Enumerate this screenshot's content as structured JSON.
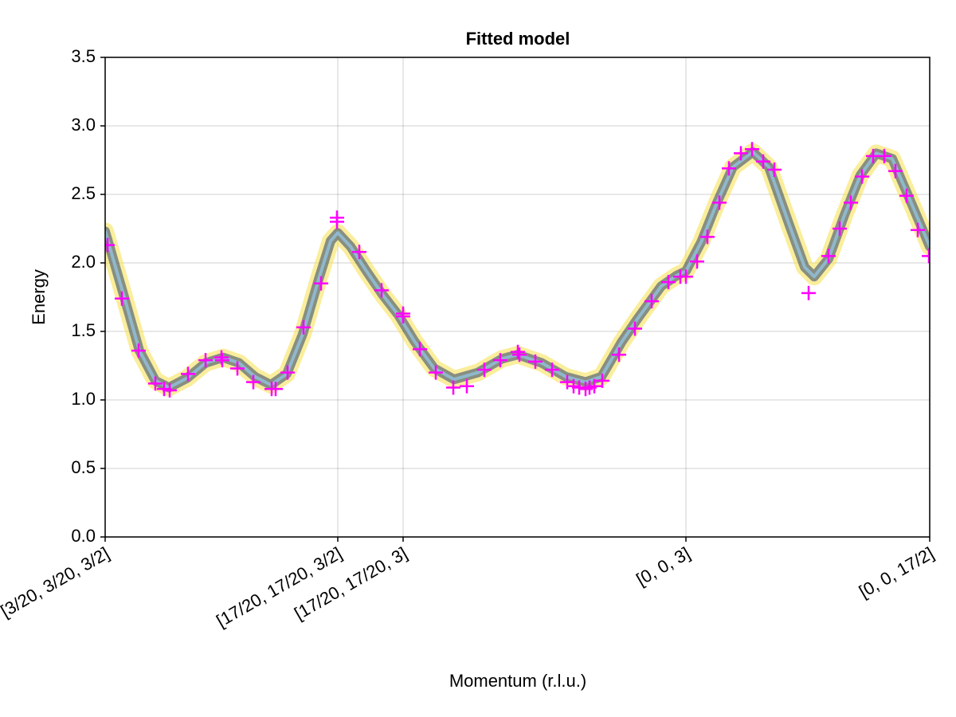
{
  "chart_data": {
    "type": "line",
    "title": "Fitted model",
    "x_label": "Momentum (r.l.u.)",
    "y_label": "Energy",
    "xlim": [
      0,
      1035
    ],
    "xticks": [
      {
        "value": 0,
        "label": "[3/20, 3/20, 3/2]"
      },
      {
        "value": 292,
        "label": "[17/20, 17/20, 3/2]"
      },
      {
        "value": 374,
        "label": "[17/20, 17/20, 3]"
      },
      {
        "value": 729,
        "label": "[0, 0, 3]"
      },
      {
        "value": 1035,
        "label": "[0, 0, 17/2]"
      }
    ],
    "ylim": [
      0,
      3.5
    ],
    "yticks": [
      {
        "value": 0,
        "label": "0.0"
      },
      0.5,
      {
        "value": 1,
        "label": "1.0"
      },
      1.5,
      {
        "value": 2,
        "label": "2.0"
      },
      2.5,
      {
        "value": 3,
        "label": "3.0"
      },
      3.5
    ],
    "grid": true,
    "series": [
      {
        "type": "line",
        "color": "#8fb8cc",
        "band_color": "#f5e04a",
        "x": [
          0,
          23,
          43,
          63,
          80,
          103,
          126,
          148,
          168,
          188,
          208,
          228,
          248,
          268,
          283,
          292,
          308,
          328,
          348,
          368,
          388,
          413,
          438,
          468,
          498,
          518,
          548,
          578,
          603,
          623,
          648,
          668,
          698,
          718,
          729,
          748,
          768,
          788,
          813,
          833,
          858,
          878,
          890,
          908,
          928,
          948,
          968,
          988,
          1008,
          1035
        ],
        "values": [
          2.23,
          1.77,
          1.36,
          1.14,
          1.09,
          1.16,
          1.27,
          1.31,
          1.27,
          1.17,
          1.11,
          1.19,
          1.48,
          1.88,
          2.16,
          2.22,
          2.12,
          1.94,
          1.77,
          1.62,
          1.43,
          1.23,
          1.15,
          1.2,
          1.3,
          1.33,
          1.27,
          1.17,
          1.13,
          1.17,
          1.42,
          1.59,
          1.83,
          1.91,
          1.94,
          2.15,
          2.44,
          2.7,
          2.81,
          2.7,
          2.29,
          1.97,
          1.9,
          2.03,
          2.35,
          2.64,
          2.8,
          2.76,
          2.49,
          2.12
        ]
      },
      {
        "type": "scatter",
        "color": "#ff00ff",
        "x": [
          3,
          21,
          42,
          63,
          74,
          81,
          104,
          126,
          146,
          147,
          166,
          186,
          209,
          214,
          229,
          249,
          271,
          291,
          291,
          319,
          347,
          374,
          374,
          395,
          415,
          437,
          454,
          476,
          496,
          518,
          520,
          540,
          561,
          580,
          588,
          595,
          603,
          608,
          614,
          624,
          645,
          665,
          686,
          707,
          722,
          729,
          743,
          756,
          771,
          783,
          798,
          812,
          826,
          840,
          883,
          908,
          922,
          936,
          950,
          964,
          978,
          992,
          1006,
          1020,
          1034
        ],
        "values": [
          2.13,
          1.74,
          1.36,
          1.12,
          1.08,
          1.07,
          1.19,
          1.29,
          1.31,
          1.29,
          1.23,
          1.13,
          1.08,
          1.08,
          1.2,
          1.53,
          1.85,
          2.33,
          2.3,
          2.08,
          1.8,
          1.63,
          1.61,
          1.37,
          1.2,
          1.09,
          1.1,
          1.22,
          1.29,
          1.35,
          1.33,
          1.28,
          1.22,
          1.13,
          1.1,
          1.09,
          1.08,
          1.09,
          1.1,
          1.14,
          1.33,
          1.52,
          1.72,
          1.86,
          1.9,
          1.9,
          2.01,
          2.19,
          2.44,
          2.69,
          2.8,
          2.83,
          2.74,
          2.68,
          1.78,
          2.05,
          2.25,
          2.44,
          2.63,
          2.78,
          2.78,
          2.67,
          2.49,
          2.24,
          2.05
        ]
      }
    ]
  }
}
